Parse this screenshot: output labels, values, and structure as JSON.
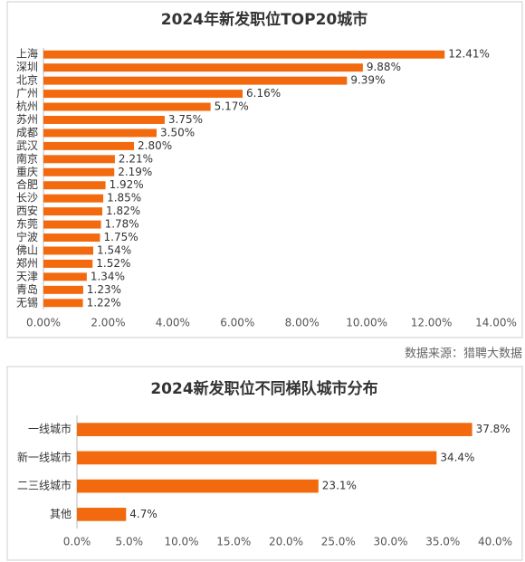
{
  "chart_data": [
    {
      "type": "bar",
      "orientation": "horizontal",
      "title": "2024年新发职位TOP20城市",
      "color": "#f26a0d",
      "categories": [
        "上海",
        "深圳",
        "北京",
        "广州",
        "杭州",
        "苏州",
        "成都",
        "武汉",
        "南京",
        "重庆",
        "合肥",
        "长沙",
        "西安",
        "东莞",
        "宁波",
        "佛山",
        "郑州",
        "天津",
        "青岛",
        "无锡"
      ],
      "values": [
        12.41,
        9.88,
        9.39,
        6.16,
        5.17,
        3.75,
        3.5,
        2.8,
        2.21,
        2.19,
        1.92,
        1.85,
        1.82,
        1.78,
        1.75,
        1.54,
        1.52,
        1.34,
        1.23,
        1.22
      ],
      "value_labels": [
        "12.41%",
        "9.88%",
        "9.39%",
        "6.16%",
        "5.17%",
        "3.75%",
        "3.50%",
        "2.80%",
        "2.21%",
        "2.19%",
        "1.92%",
        "1.85%",
        "1.82%",
        "1.78%",
        "1.75%",
        "1.54%",
        "1.52%",
        "1.34%",
        "1.23%",
        "1.22%"
      ],
      "xlim": [
        0,
        14
      ],
      "xticks": [
        {
          "value": 0,
          "label": "0.00%"
        },
        {
          "value": 2,
          "label": "2.00%"
        },
        {
          "value": 4,
          "label": "4.00%"
        },
        {
          "value": 6,
          "label": "6.00%"
        },
        {
          "value": 8,
          "label": "8.00%"
        },
        {
          "value": 10,
          "label": "10.00%"
        },
        {
          "value": 12,
          "label": "12.00%"
        },
        {
          "value": 14,
          "label": "14.00%"
        }
      ],
      "source": "数据来源：猎聘大数据"
    },
    {
      "type": "bar",
      "orientation": "horizontal",
      "title": "2024新发职位不同梯队城市分布",
      "color": "#f26a0d",
      "categories": [
        "一线城市",
        "新一线城市",
        "二三线城市",
        "其他"
      ],
      "values": [
        37.8,
        34.4,
        23.1,
        4.7
      ],
      "value_labels": [
        "37.8%",
        "34.4%",
        "23.1%",
        "4.7%"
      ],
      "xlim": [
        0,
        40
      ],
      "xticks": [
        {
          "value": 0,
          "label": "0.0%"
        },
        {
          "value": 5,
          "label": "5.0%"
        },
        {
          "value": 10,
          "label": "10.0%"
        },
        {
          "value": 15,
          "label": "15.0%"
        },
        {
          "value": 20,
          "label": "20.0%"
        },
        {
          "value": 25,
          "label": "25.0%"
        },
        {
          "value": 30,
          "label": "30.0%"
        },
        {
          "value": 35,
          "label": "35.0%"
        },
        {
          "value": 40,
          "label": "40.0%"
        }
      ]
    }
  ]
}
